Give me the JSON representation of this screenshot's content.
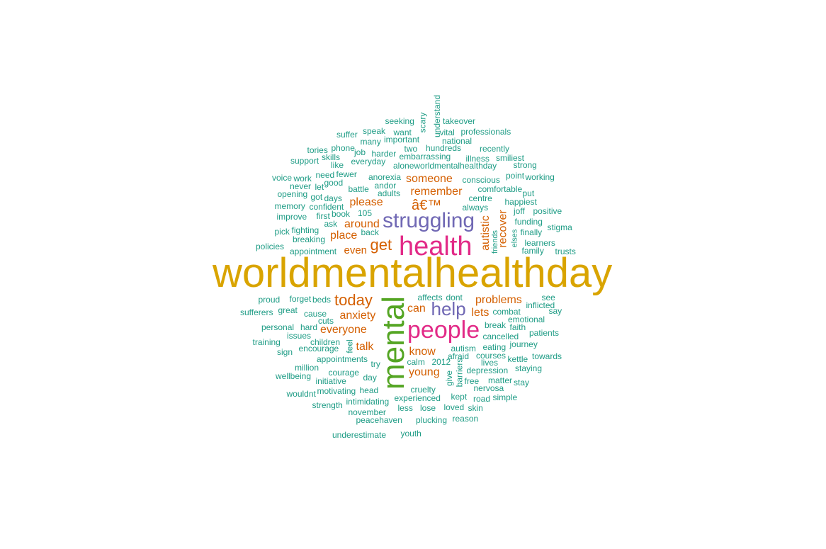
{
  "colors": {
    "gold": "#D9A400",
    "pink": "#E22A87",
    "green": "#54A523",
    "purple": "#7068B4",
    "orange": "#D45F00",
    "teal": "#1E9C85"
  },
  "words": [
    {
      "text": "worldmentalhealthday",
      "color": "gold"
    },
    {
      "text": "mental",
      "color": "green"
    },
    {
      "text": "health",
      "color": "pink"
    },
    {
      "text": "people",
      "color": "pink"
    },
    {
      "text": "struggling",
      "color": "purple"
    },
    {
      "text": "help",
      "color": "purple"
    },
    {
      "text": "get",
      "color": "orange"
    },
    {
      "text": "today",
      "color": "orange"
    },
    {
      "text": "â€™",
      "color": "orange"
    },
    {
      "text": "someone",
      "color": "orange"
    },
    {
      "text": "remember",
      "color": "orange"
    },
    {
      "text": "please",
      "color": "orange"
    },
    {
      "text": "around",
      "color": "orange"
    },
    {
      "text": "place",
      "color": "orange"
    },
    {
      "text": "even",
      "color": "orange"
    },
    {
      "text": "autistic",
      "color": "orange"
    },
    {
      "text": "recover",
      "color": "orange"
    },
    {
      "text": "problems",
      "color": "orange"
    },
    {
      "text": "can",
      "color": "orange"
    },
    {
      "text": "lets",
      "color": "orange"
    },
    {
      "text": "anxiety",
      "color": "orange"
    },
    {
      "text": "everyone",
      "color": "orange"
    },
    {
      "text": "talk",
      "color": "orange"
    },
    {
      "text": "know",
      "color": "orange"
    },
    {
      "text": "young",
      "color": "orange"
    },
    {
      "text": "seeking",
      "color": "teal"
    },
    {
      "text": "scary",
      "color": "teal"
    },
    {
      "text": "understand",
      "color": "teal"
    },
    {
      "text": "takeover",
      "color": "teal"
    },
    {
      "text": "suffer",
      "color": "teal"
    },
    {
      "text": "speak",
      "color": "teal"
    },
    {
      "text": "want",
      "color": "teal"
    },
    {
      "text": "vital",
      "color": "teal"
    },
    {
      "text": "professionals",
      "color": "teal"
    },
    {
      "text": "many",
      "color": "teal"
    },
    {
      "text": "important",
      "color": "teal"
    },
    {
      "text": "national",
      "color": "teal"
    },
    {
      "text": "phone",
      "color": "teal"
    },
    {
      "text": "two",
      "color": "teal"
    },
    {
      "text": "hundreds",
      "color": "teal"
    },
    {
      "text": "recently",
      "color": "teal"
    },
    {
      "text": "tories",
      "color": "teal"
    },
    {
      "text": "job",
      "color": "teal"
    },
    {
      "text": "harder",
      "color": "teal"
    },
    {
      "text": "embarrassing",
      "color": "teal"
    },
    {
      "text": "illness",
      "color": "teal"
    },
    {
      "text": "smiliest",
      "color": "teal"
    },
    {
      "text": "support",
      "color": "teal"
    },
    {
      "text": "skills",
      "color": "teal"
    },
    {
      "text": "like",
      "color": "teal"
    },
    {
      "text": "everyday",
      "color": "teal"
    },
    {
      "text": "aloneworldmentalhealthday",
      "color": "teal"
    },
    {
      "text": "strong",
      "color": "teal"
    },
    {
      "text": "voice",
      "color": "teal"
    },
    {
      "text": "work",
      "color": "teal"
    },
    {
      "text": "need",
      "color": "teal"
    },
    {
      "text": "fewer",
      "color": "teal"
    },
    {
      "text": "anorexia",
      "color": "teal"
    },
    {
      "text": "point",
      "color": "teal"
    },
    {
      "text": "working",
      "color": "teal"
    },
    {
      "text": "never",
      "color": "teal"
    },
    {
      "text": "let",
      "color": "teal"
    },
    {
      "text": "good",
      "color": "teal"
    },
    {
      "text": "andor",
      "color": "teal"
    },
    {
      "text": "conscious",
      "color": "teal"
    },
    {
      "text": "battle",
      "color": "teal"
    },
    {
      "text": "comfortable",
      "color": "teal"
    },
    {
      "text": "opening",
      "color": "teal"
    },
    {
      "text": "got",
      "color": "teal"
    },
    {
      "text": "days",
      "color": "teal"
    },
    {
      "text": "adults",
      "color": "teal"
    },
    {
      "text": "put",
      "color": "teal"
    },
    {
      "text": "memory",
      "color": "teal"
    },
    {
      "text": "confident",
      "color": "teal"
    },
    {
      "text": "centre",
      "color": "teal"
    },
    {
      "text": "happiest",
      "color": "teal"
    },
    {
      "text": "always",
      "color": "teal"
    },
    {
      "text": "joff",
      "color": "teal"
    },
    {
      "text": "positive",
      "color": "teal"
    },
    {
      "text": "improve",
      "color": "teal"
    },
    {
      "text": "first",
      "color": "teal"
    },
    {
      "text": "book",
      "color": "teal"
    },
    {
      "text": "105",
      "color": "teal"
    },
    {
      "text": "funding",
      "color": "teal"
    },
    {
      "text": "ask",
      "color": "teal"
    },
    {
      "text": "stigma",
      "color": "teal"
    },
    {
      "text": "pick",
      "color": "teal"
    },
    {
      "text": "fighting",
      "color": "teal"
    },
    {
      "text": "back",
      "color": "teal"
    },
    {
      "text": "finally",
      "color": "teal"
    },
    {
      "text": "friends",
      "color": "teal"
    },
    {
      "text": "elses",
      "color": "teal"
    },
    {
      "text": "breaking",
      "color": "teal"
    },
    {
      "text": "learners",
      "color": "teal"
    },
    {
      "text": "policies",
      "color": "teal"
    },
    {
      "text": "family",
      "color": "teal"
    },
    {
      "text": "trusts",
      "color": "teal"
    },
    {
      "text": "appointment",
      "color": "teal"
    },
    {
      "text": "proud",
      "color": "teal"
    },
    {
      "text": "forget",
      "color": "teal"
    },
    {
      "text": "beds",
      "color": "teal"
    },
    {
      "text": "affects",
      "color": "teal"
    },
    {
      "text": "dont",
      "color": "teal"
    },
    {
      "text": "see",
      "color": "teal"
    },
    {
      "text": "inflicted",
      "color": "teal"
    },
    {
      "text": "sufferers",
      "color": "teal"
    },
    {
      "text": "great",
      "color": "teal"
    },
    {
      "text": "cause",
      "color": "teal"
    },
    {
      "text": "combat",
      "color": "teal"
    },
    {
      "text": "say",
      "color": "teal"
    },
    {
      "text": "cuts",
      "color": "teal"
    },
    {
      "text": "emotional",
      "color": "teal"
    },
    {
      "text": "personal",
      "color": "teal"
    },
    {
      "text": "hard",
      "color": "teal"
    },
    {
      "text": "break",
      "color": "teal"
    },
    {
      "text": "faith",
      "color": "teal"
    },
    {
      "text": "issues",
      "color": "teal"
    },
    {
      "text": "cancelled",
      "color": "teal"
    },
    {
      "text": "patients",
      "color": "teal"
    },
    {
      "text": "training",
      "color": "teal"
    },
    {
      "text": "children",
      "color": "teal"
    },
    {
      "text": "eating",
      "color": "teal"
    },
    {
      "text": "journey",
      "color": "teal"
    },
    {
      "text": "sign",
      "color": "teal"
    },
    {
      "text": "encourage",
      "color": "teal"
    },
    {
      "text": "feel",
      "color": "teal"
    },
    {
      "text": "autism",
      "color": "teal"
    },
    {
      "text": "courses",
      "color": "teal"
    },
    {
      "text": "towards",
      "color": "teal"
    },
    {
      "text": "appointments",
      "color": "teal"
    },
    {
      "text": "afraid",
      "color": "teal"
    },
    {
      "text": "kettle",
      "color": "teal"
    },
    {
      "text": "million",
      "color": "teal"
    },
    {
      "text": "try",
      "color": "teal"
    },
    {
      "text": "calm",
      "color": "teal"
    },
    {
      "text": "2012",
      "color": "teal"
    },
    {
      "text": "lives",
      "color": "teal"
    },
    {
      "text": "staying",
      "color": "teal"
    },
    {
      "text": "wellbeing",
      "color": "teal"
    },
    {
      "text": "courage",
      "color": "teal"
    },
    {
      "text": "barriers",
      "color": "teal"
    },
    {
      "text": "depression",
      "color": "teal"
    },
    {
      "text": "initiative",
      "color": "teal"
    },
    {
      "text": "day",
      "color": "teal"
    },
    {
      "text": "give",
      "color": "teal"
    },
    {
      "text": "free",
      "color": "teal"
    },
    {
      "text": "matter",
      "color": "teal"
    },
    {
      "text": "stay",
      "color": "teal"
    },
    {
      "text": "wouldnt",
      "color": "teal"
    },
    {
      "text": "motivating",
      "color": "teal"
    },
    {
      "text": "head",
      "color": "teal"
    },
    {
      "text": "cruelty",
      "color": "teal"
    },
    {
      "text": "nervosa",
      "color": "teal"
    },
    {
      "text": "experienced",
      "color": "teal"
    },
    {
      "text": "kept",
      "color": "teal"
    },
    {
      "text": "road",
      "color": "teal"
    },
    {
      "text": "simple",
      "color": "teal"
    },
    {
      "text": "strength",
      "color": "teal"
    },
    {
      "text": "intimidating",
      "color": "teal"
    },
    {
      "text": "less",
      "color": "teal"
    },
    {
      "text": "lose",
      "color": "teal"
    },
    {
      "text": "loved",
      "color": "teal"
    },
    {
      "text": "skin",
      "color": "teal"
    },
    {
      "text": "november",
      "color": "teal"
    },
    {
      "text": "peacehaven",
      "color": "teal"
    },
    {
      "text": "plucking",
      "color": "teal"
    },
    {
      "text": "reason",
      "color": "teal"
    },
    {
      "text": "underestimate",
      "color": "teal"
    },
    {
      "text": "youth",
      "color": "teal"
    }
  ]
}
